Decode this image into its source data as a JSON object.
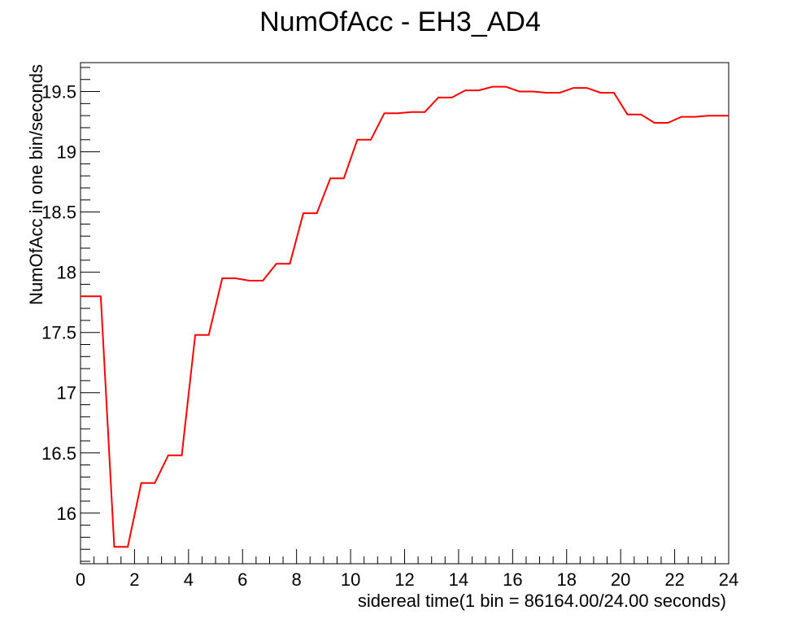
{
  "chart_data": {
    "type": "line",
    "title": "NumOfAcc - EH3_AD4",
    "xlabel": "sidereal time(1 bin = 86164.00/24.00 seconds)",
    "ylabel": "NumOfAcc in one bin/seconds",
    "xlim": [
      0,
      24
    ],
    "ylim": [
      15.58,
      19.74
    ],
    "x_ticks": [
      0,
      2,
      4,
      6,
      8,
      10,
      12,
      14,
      16,
      18,
      20,
      22,
      24
    ],
    "x_tick_labels": [
      "0",
      "2",
      "4",
      "6",
      "8",
      "10",
      "12",
      "14",
      "16",
      "18",
      "20",
      "22",
      "24"
    ],
    "y_ticks": [
      16,
      16.5,
      17,
      17.5,
      18,
      18.5,
      19,
      19.5
    ],
    "y_tick_labels": [
      "16",
      "16.5",
      "17",
      "17.5",
      "18",
      "18.5",
      "19",
      "19.5"
    ],
    "grid": false,
    "line_color": "#ff0000",
    "bin_centers": [
      0.5,
      1.5,
      2.5,
      3.5,
      4.5,
      5.5,
      6.5,
      7.5,
      8.5,
      9.5,
      10.5,
      11.5,
      12.5,
      13.5,
      14.5,
      15.5,
      16.5,
      17.5,
      18.5,
      19.5,
      20.5,
      21.5,
      22.5,
      23.5
    ],
    "values": [
      17.8,
      15.72,
      16.25,
      16.48,
      17.48,
      17.95,
      17.93,
      18.07,
      18.49,
      18.78,
      19.1,
      19.32,
      19.33,
      19.45,
      19.51,
      19.54,
      19.5,
      19.49,
      19.53,
      19.49,
      19.31,
      19.24,
      19.29,
      19.3
    ]
  }
}
